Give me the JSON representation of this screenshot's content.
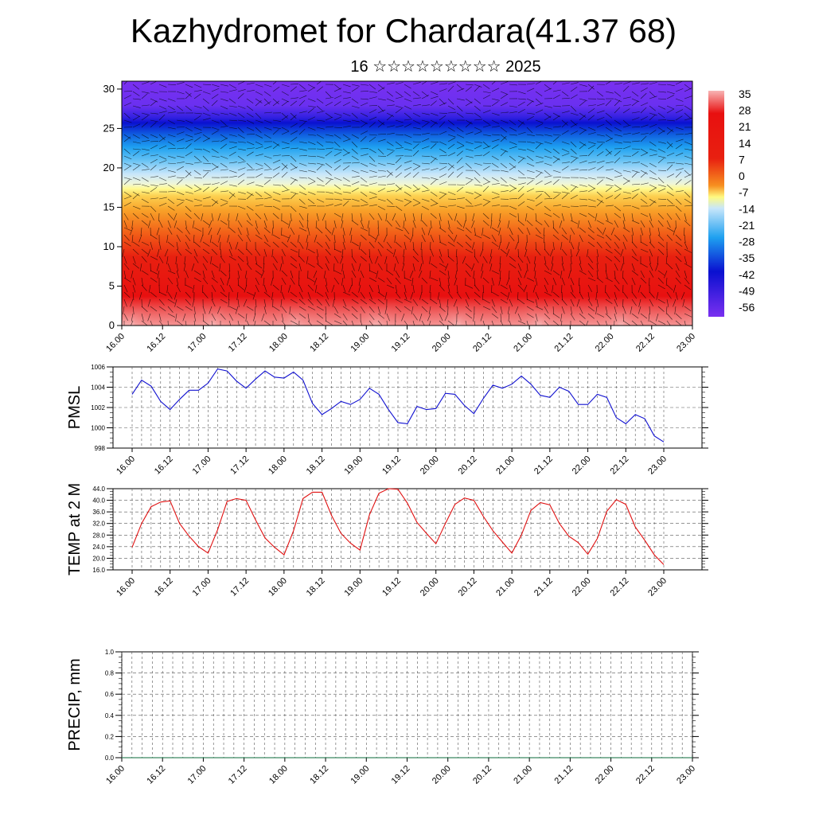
{
  "title": "Kazhydromet for Chardara(41.37 68)",
  "subtitle": "16 ☆☆☆☆☆☆☆☆☆ 2025",
  "chart_data": [
    {
      "type": "heatmap",
      "x_tick_labels": [
        "16.00",
        "16.12",
        "17.00",
        "17.12",
        "18.00",
        "18.12",
        "19.00",
        "19.12",
        "20.00",
        "20.12",
        "21.00",
        "21.12",
        "22.00",
        "22.12",
        "23.00"
      ],
      "ylim": [
        0,
        31
      ],
      "y_ticks": [
        0,
        5,
        10,
        15,
        20,
        25,
        30
      ],
      "colorbar_labels": [
        "35",
        "28",
        "21",
        "14",
        "7",
        "0",
        "-7",
        "-14",
        "-21",
        "-28",
        "-35",
        "-42",
        "-49",
        "-56"
      ],
      "wind_barbs": true,
      "colors": {
        "warm_high": "#f8b4b4",
        "warm": "#e81010",
        "orange": "#f79020",
        "yellow": "#fffa80",
        "light_blue": "#c8e6fa",
        "blue": "#1ea0f0",
        "dark_blue": "#0a10d0",
        "violet": "#7a30f0"
      }
    },
    {
      "type": "line",
      "ylabel": "PMSL",
      "ylim": [
        998,
        1006
      ],
      "y_ticks": [
        998,
        1000,
        1002,
        1004,
        1006
      ],
      "x_tick_labels": [
        "16.00",
        "16.12",
        "17.00",
        "17.12",
        "18.00",
        "18.12",
        "19.00",
        "19.12",
        "20.00",
        "20.12",
        "21.00",
        "21.12",
        "22.00",
        "22.12",
        "23.00"
      ],
      "color": "#1010d0",
      "values": [
        1003.3,
        1004.7,
        1004.1,
        1002.6,
        1001.8,
        1002.8,
        1003.7,
        1003.7,
        1004.4,
        1005.8,
        1005.6,
        1004.6,
        1003.9,
        1004.8,
        1005.6,
        1005.0,
        1004.9,
        1005.5,
        1004.7,
        1002.4,
        1001.3,
        1001.9,
        1002.6,
        1002.3,
        1002.8,
        1003.9,
        1003.3,
        1001.8,
        1000.5,
        1000.4,
        1002.1,
        1001.8,
        1001.9,
        1003.4,
        1003.3,
        1002.2,
        1001.4,
        1002.9,
        1004.2,
        1003.9,
        1004.3,
        1005.1,
        1004.3,
        1003.2,
        1003.0,
        1004.0,
        1003.6,
        1002.3,
        1002.3,
        1003.3,
        1003.0,
        1001.0,
        1000.4,
        1001.3,
        1000.9,
        999.2,
        998.6
      ]
    },
    {
      "type": "line",
      "ylabel": "TEMP at 2 M",
      "ylim": [
        16,
        44
      ],
      "y_ticks": [
        "16.0",
        "20.0",
        "24.0",
        "28.0",
        "32.0",
        "36.0",
        "40.0",
        "44.0"
      ],
      "x_tick_labels": [
        "16.00",
        "16.12",
        "17.00",
        "17.12",
        "18.00",
        "18.12",
        "19.00",
        "19.12",
        "20.00",
        "20.12",
        "21.00",
        "21.12",
        "22.00",
        "22.12",
        "23.00"
      ],
      "color": "#e01010",
      "values": [
        23.8,
        32.0,
        37.8,
        39.4,
        39.8,
        32.0,
        27.6,
        24.0,
        21.8,
        29.8,
        39.6,
        40.6,
        40.0,
        33.2,
        27.0,
        23.8,
        21.2,
        29.5,
        40.6,
        42.8,
        42.8,
        34.8,
        28.6,
        25.2,
        22.8,
        35.0,
        42.4,
        44.0,
        43.8,
        39.0,
        32.4,
        28.6,
        25.0,
        32.0,
        38.6,
        40.8,
        40.0,
        34.4,
        29.5,
        25.6,
        21.8,
        28.0,
        36.5,
        39.2,
        38.4,
        32.0,
        27.6,
        25.4,
        21.4,
        26.8,
        36.2,
        40.2,
        38.6,
        30.8,
        26.2,
        21.2,
        17.8
      ]
    },
    {
      "type": "line",
      "ylabel": "PRECIP, mm",
      "ylim": [
        0,
        1
      ],
      "y_ticks": [
        "0.0",
        "0.2",
        "0.4",
        "0.6",
        "0.8",
        "1.0"
      ],
      "x_tick_labels": [
        "16.00",
        "16.12",
        "17.00",
        "17.12",
        "18.00",
        "18.12",
        "19.00",
        "19.12",
        "20.00",
        "20.12",
        "21.00",
        "21.12",
        "22.00",
        "22.12",
        "23.00"
      ],
      "color": "#0a6a3a",
      "values": [
        0,
        0,
        0,
        0,
        0,
        0,
        0,
        0,
        0,
        0,
        0,
        0,
        0,
        0,
        0,
        0,
        0,
        0,
        0,
        0,
        0,
        0,
        0,
        0,
        0,
        0,
        0,
        0,
        0,
        0,
        0,
        0,
        0,
        0,
        0,
        0,
        0,
        0,
        0,
        0,
        0,
        0,
        0,
        0,
        0,
        0,
        0,
        0,
        0,
        0,
        0,
        0,
        0,
        0,
        0,
        0,
        0
      ]
    }
  ]
}
